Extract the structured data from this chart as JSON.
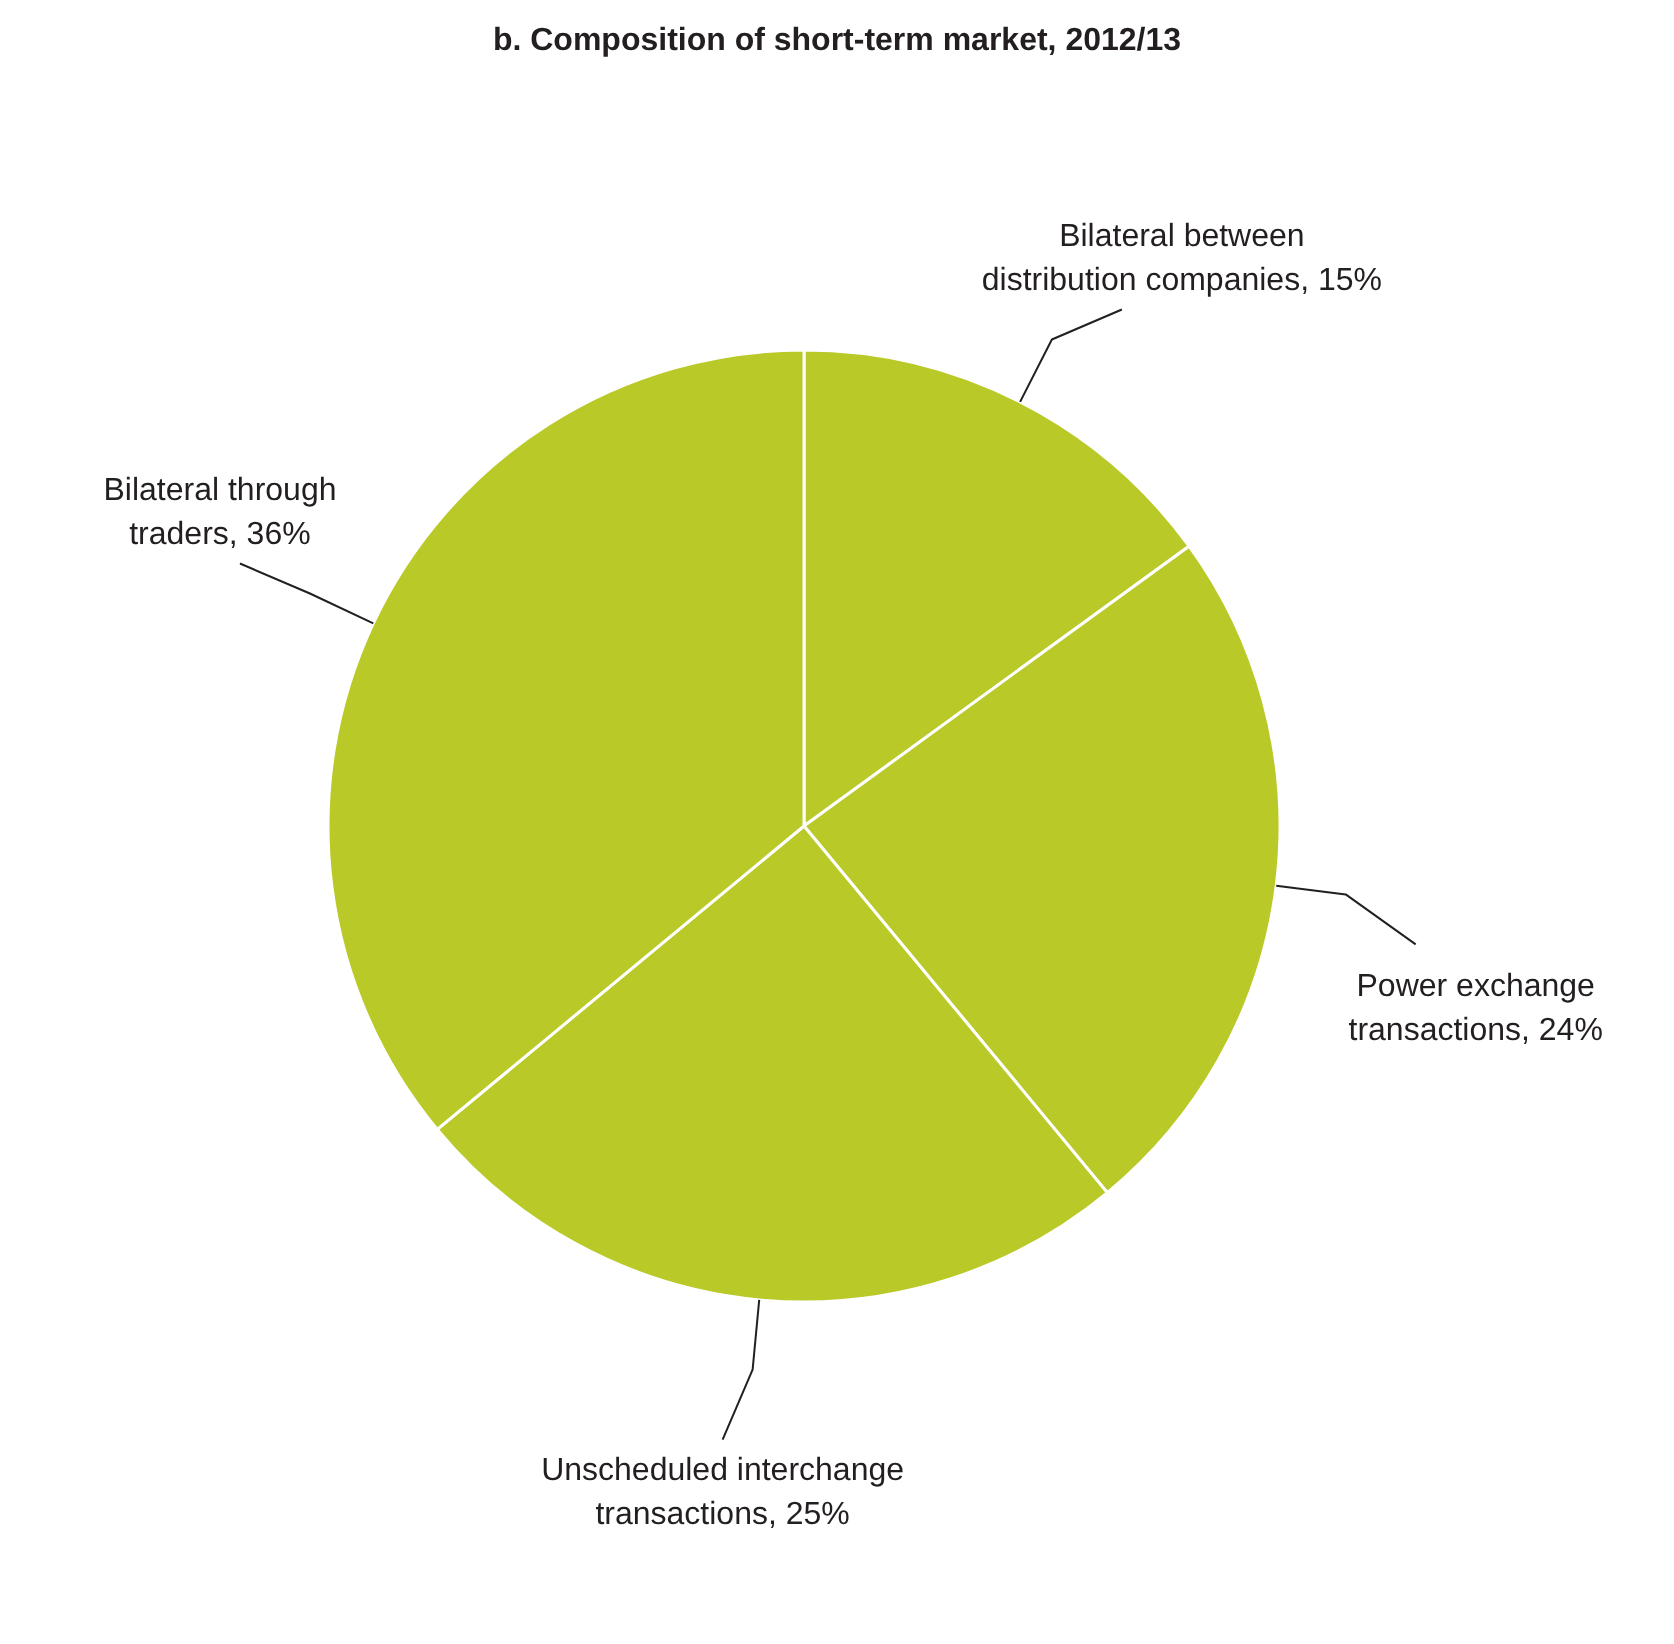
{
  "chart_data": {
    "type": "pie",
    "title": "b. Composition of short-term market, 2012/13",
    "categories": [
      "Bilateral between distribution companies",
      "Power exchange transactions",
      "Unscheduled interchange transactions",
      "Bilateral through traders"
    ],
    "value_labels": [
      "15%",
      "24%",
      "25%",
      "36%"
    ],
    "values": [
      15,
      24,
      25,
      36
    ],
    "colors": [
      "#b9c927",
      "#b9c927",
      "#b9c927",
      "#b9c927"
    ],
    "legend": false
  }
}
